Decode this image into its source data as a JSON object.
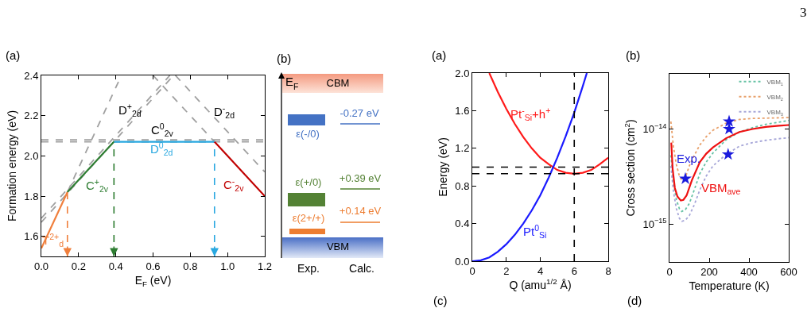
{
  "chart_data": [
    {
      "type": "line",
      "title": "(a)",
      "xlabel": "E$_{F}$ (eV)",
      "ylabel": "Formation energy (eV)",
      "xlim": [
        0,
        1.2
      ],
      "xticks": [
        {
          "value": 0,
          "label": "0.0"
        },
        0.2,
        0.4,
        0.6,
        0.8,
        {
          "value": 1,
          "label": "1.0"
        },
        1.2
      ],
      "ylim": [
        1.5,
        2.4
      ],
      "yticks": [
        1.6,
        1.8,
        {
          "value": 2,
          "label": "2.0"
        },
        2.2,
        2.4
      ],
      "marker": "none",
      "series": [
        {
          "name": "D$^{+}$$_{2d}$",
          "color": "#a0a0a0",
          "line_style": "dashed",
          "x": [
            0,
            0.69
          ],
          "values": [
            1.69,
            2.4
          ]
        },
        {
          "name": "C$^{0}$$_{2v}$",
          "color": "#a0a0a0",
          "line_style": "dashed",
          "x": [
            0,
            1.2
          ],
          "values": [
            2.08,
            2.08
          ]
        },
        {
          "name": "D$^{-}$$_{2d}$",
          "color": "#a0a0a0",
          "line_style": "dashed",
          "x": [
            0.72,
            1.2
          ],
          "values": [
            2.4,
            1.92
          ]
        },
        {
          "color": "#a0a0a0",
          "line_style": "dashed",
          "x": [
            0,
            0.71
          ],
          "values": [
            1.67,
            2.4
          ]
        },
        {
          "color": "#a0a0a0",
          "line_style": "dashed",
          "x": [
            0.14,
            0.43
          ],
          "values": [
            1.82,
            2.4
          ]
        },
        {
          "color": "#a0a0a0",
          "line_style": "dashed",
          "x": [
            0,
            1.2
          ],
          "values": [
            2.07,
            2.07
          ]
        },
        {
          "color": "#a0a0a0",
          "line_style": "dashed",
          "x": [
            0.6,
            0.93
          ],
          "values": [
            2.4,
            2.07
          ]
        },
        {
          "name": "T$^{2+}$$_{d}$",
          "color": "#f07f3c",
          "line_style": "solid",
          "x": [
            0,
            0.14
          ],
          "values": [
            1.54,
            1.82
          ]
        },
        {
          "name": "C$^{+}$$_{2v}$",
          "color": "#2e7d32",
          "line_style": "solid",
          "x": [
            0.14,
            0.39
          ],
          "values": [
            1.82,
            2.07
          ]
        },
        {
          "name": "D$^{0}$$_{2d}$",
          "color": "#29a8e0",
          "line_style": "solid",
          "x": [
            0.39,
            0.93
          ],
          "values": [
            2.07,
            2.07
          ]
        },
        {
          "name": "C$^{-}$$_{2v}$",
          "color": "#c00000",
          "line_style": "solid",
          "x": [
            0.93,
            1.2
          ],
          "values": [
            2.07,
            1.8
          ]
        }
      ],
      "ref_lines": [
        {
          "axis": "x",
          "value": 0.14,
          "color": "#f07f3c",
          "line_style": "dashed"
        },
        {
          "axis": "x",
          "value": 0.39,
          "color": "#2e7d32",
          "line_style": "dashed"
        },
        {
          "axis": "x",
          "value": 0.93,
          "color": "#29a8e0",
          "line_style": "dashed"
        }
      ]
    },
    {
      "type": "other",
      "title": "(b)",
      "ylabel": "E$_{F}$",
      "categories": [
        "Exp.",
        "Calc."
      ],
      "annotations": [
        "CBM",
        "VBM",
        "ε(-/0)",
        "ε(+/0)",
        "ε(2+/+)",
        "-0.27 eV",
        "+0.39 eV",
        "+0.14 eV"
      ],
      "colors": [
        "#4472c4",
        "#548235",
        "#ed7d31"
      ]
    },
    {
      "type": "line",
      "title": "(a)",
      "annotations": [
        "(c)"
      ],
      "xlabel": "Q (amu$^{1/2}$ Å)",
      "ylabel": "Energy (eV)",
      "xlim": [
        0,
        8
      ],
      "xticks": [
        0,
        2,
        4,
        6,
        8
      ],
      "ylim": [
        0,
        2
      ],
      "yticks": [
        {
          "value": 0,
          "label": "0.0"
        },
        0.4,
        0.8,
        1.2,
        1.6,
        {
          "value": 2,
          "label": "2.0"
        }
      ],
      "marker": "none",
      "series": [
        {
          "name": "Pt$^{-}$$_{Si}$+h$^{+}$",
          "color": "#ff1a1a",
          "line_style": "solid",
          "x": [
            1,
            1.5,
            2,
            2.5,
            3,
            3.5,
            4,
            4.5,
            5,
            5.5,
            6,
            6.5,
            7,
            7.5,
            8
          ],
          "values": [
            2.0,
            1.8,
            1.62,
            1.46,
            1.32,
            1.2,
            1.1,
            1.03,
            0.97,
            0.94,
            0.93,
            0.94,
            0.97,
            1.03,
            1.1
          ]
        },
        {
          "name": "Pt$^{0}$$_{Si}$",
          "color": "#1a1aff",
          "line_style": "solid",
          "x": [
            0,
            0.5,
            1,
            1.5,
            2,
            2.5,
            3,
            3.5,
            4,
            4.5,
            5,
            5.5,
            6,
            6.5,
            6.74
          ],
          "values": [
            0,
            0.01,
            0.04,
            0.1,
            0.18,
            0.28,
            0.4,
            0.54,
            0.7,
            0.89,
            1.1,
            1.33,
            1.58,
            1.86,
            2.0
          ]
        }
      ],
      "ref_lines": [
        {
          "axis": "x",
          "value": 6,
          "color": "#000000",
          "line_style": "dashed"
        },
        {
          "axis": "y",
          "value": 1.0,
          "color": "#000000",
          "line_style": "dashed"
        },
        {
          "axis": "y",
          "value": 0.93,
          "color": "#000000",
          "line_style": "dashed"
        }
      ]
    },
    {
      "type": "line",
      "title": "(b)",
      "annotations": [
        "(d)",
        "3"
      ],
      "xlabel": "Temperature (K)",
      "ylabel": "Cross section (cm$^{2}$)",
      "log": "y",
      "legend": "top right",
      "xlim": [
        0,
        600
      ],
      "xticks": [
        0,
        200,
        400,
        600
      ],
      "ylim": [
        4e-16,
        3.8e-14
      ],
      "yticks": [
        {
          "value": 1e-15,
          "label": "10$^{−15}$"
        },
        {
          "value": 1e-14,
          "label": "10$^{−14}$"
        }
      ],
      "series": [
        {
          "name": "VBM$_{1}$",
          "color": "#66c2a5",
          "line_style": "dotted",
          "marker": "none",
          "x": [
            7,
            20,
            35,
            50,
            62,
            80,
            100,
            125,
            153,
            185,
            219,
            285,
            352,
            418,
            484,
            550,
            600
          ],
          "values": [
            5.3e-15,
            2.8e-15,
            1.8e-15,
            1.45e-15,
            1.36e-15,
            1.42e-15,
            1.65e-15,
            2.3e-15,
            3.4e-15,
            4.5e-15,
            5.6e-15,
            7.7e-15,
            9.3e-15,
            1.03e-14,
            1.12e-14,
            1.18e-14,
            1.23e-14
          ]
        },
        {
          "name": "VBM$_{2}$",
          "color": "#e8a06a",
          "line_style": "dotted",
          "marker": "none",
          "x": [
            7,
            20,
            35,
            50,
            62,
            80,
            100,
            125,
            153,
            185,
            219,
            285,
            352,
            418,
            484,
            550,
            600
          ],
          "values": [
            1.2e-14,
            6.5e-15,
            4.2e-15,
            3.2e-15,
            2.9e-15,
            3.1e-15,
            4.1e-15,
            5.3e-15,
            6.8e-15,
            8.3e-15,
            9.7e-15,
            1.15e-14,
            1.26e-14,
            1.29e-14,
            1.3e-14,
            1.31e-14,
            1.32e-14
          ]
        },
        {
          "name": "VBM$_{3}$",
          "color": "#a6a6d8",
          "line_style": "dotted",
          "marker": "none",
          "x": [
            7,
            20,
            35,
            50,
            62,
            80,
            100,
            125,
            153,
            185,
            219,
            285,
            352,
            418,
            484,
            550,
            600
          ],
          "values": [
            4.1e-15,
            2.2e-15,
            1.45e-15,
            1.15e-15,
            1.07e-15,
            1.1e-15,
            1.23e-15,
            1.6e-15,
            2.3e-15,
            3.2e-15,
            4.1e-15,
            5.4e-15,
            6.6e-15,
            7.2e-15,
            7.6e-15,
            7.9e-15,
            8.1e-15
          ]
        },
        {
          "name": "VBM$_{ave}$",
          "color": "#ee1111",
          "line_style": "solid",
          "marker": "none",
          "x": [
            9,
            16,
            27,
            40,
            57,
            70,
            86,
            113,
            153,
            185,
            219,
            285,
            352,
            418,
            484,
            550,
            600
          ],
          "values": [
            7.2e-15,
            3.8e-15,
            2.4e-15,
            1.95e-15,
            1.77e-15,
            1.8e-15,
            2e-15,
            2.9e-15,
            4.5e-15,
            5.5e-15,
            6.4e-15,
            8e-15,
            9.3e-15,
            1e-14,
            1.05e-14,
            1.08e-14,
            1.1e-14
          ]
        },
        {
          "name": "Exp.",
          "type": "scatter",
          "color": "#1a1add",
          "marker": "star",
          "x": [
            80,
            300,
            300,
            295
          ],
          "values": [
            3e-15,
            1.2e-14,
            1e-14,
            5.4e-15
          ]
        }
      ]
    }
  ]
}
